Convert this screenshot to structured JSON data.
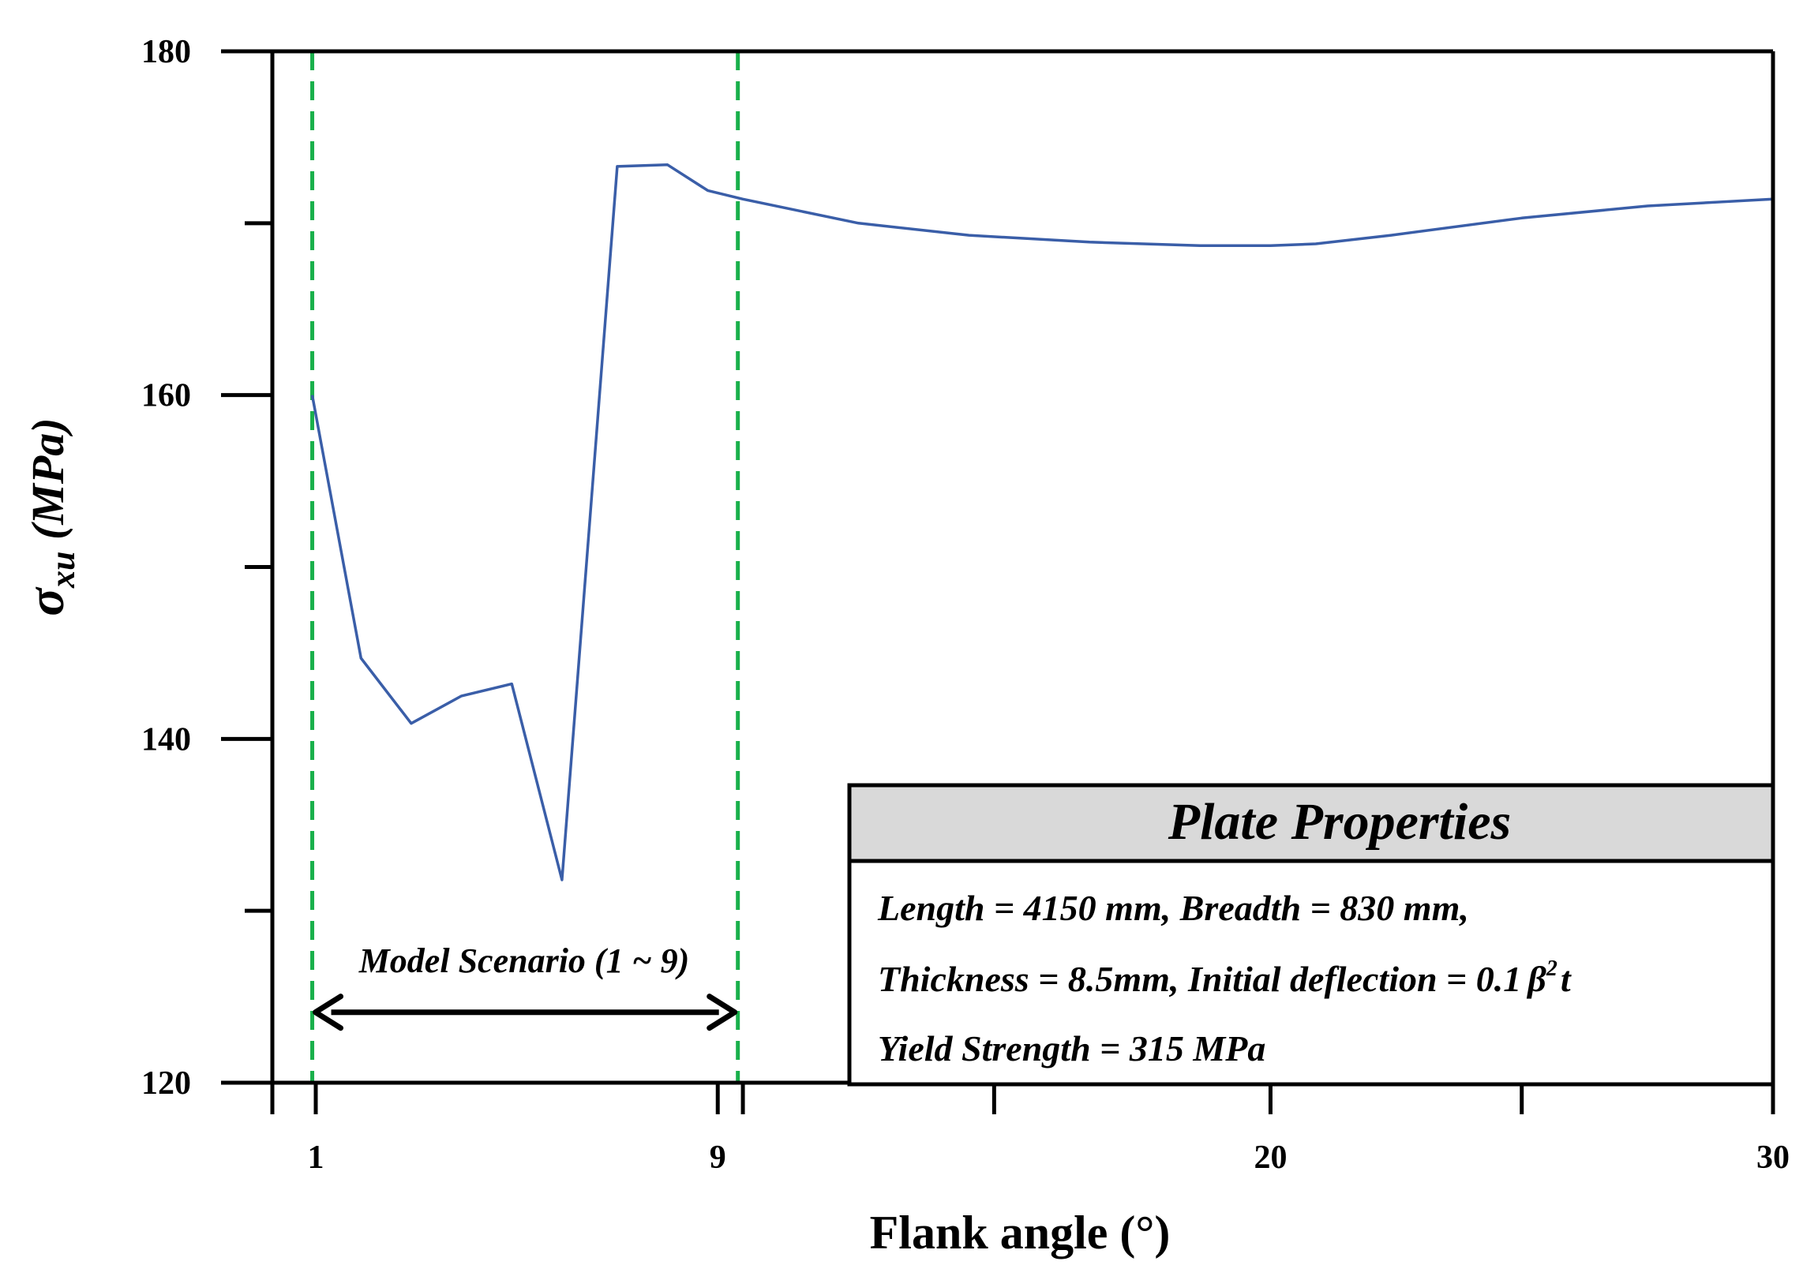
{
  "chart_data": {
    "type": "line",
    "title": "",
    "xlabel": "Flank angle (°)",
    "ylabel": {
      "symbol": "σ",
      "subscript": "xu",
      "unit": " (MPa)"
    },
    "xlim": [
      0,
      30
    ],
    "ylim": [
      120,
      180
    ],
    "xticks": [
      1,
      9,
      20,
      30
    ],
    "xticks_minor": [
      9.5,
      14.5,
      25
    ],
    "yticks": [
      120,
      140,
      160,
      180
    ],
    "yticks_minor": [
      130,
      150,
      170
    ],
    "grid": false,
    "series": [
      {
        "name": "sigma_xu",
        "color": "#3a5ea8",
        "x": [
          0.93,
          1.9,
          2.9,
          3.9,
          4.9,
          5.9,
          7.0,
          8.0,
          8.8,
          9.5,
          11.8,
          14.0,
          16.4,
          18.6,
          20.0,
          20.9,
          22.4,
          25.0,
          27.5,
          30
        ],
        "y": [
          160.0,
          144.7,
          140.9,
          142.5,
          143.2,
          131.8,
          173.3,
          173.4,
          171.9,
          171.4,
          170.0,
          169.3,
          168.9,
          168.7,
          168.7,
          168.8,
          169.3,
          170.3,
          171.0,
          171.4
        ]
      }
    ],
    "reference_lines": [
      {
        "x": 0.93,
        "style": "dashed",
        "color": "#19b04b"
      },
      {
        "x": 9.4,
        "style": "dashed",
        "color": "#19b04b"
      }
    ],
    "annotations": {
      "scenario_label": "Model Scenario (1 ~ 9)",
      "scenario_arrow_x": [
        0.93,
        9.4
      ],
      "scenario_arrow_y": 124.1
    }
  },
  "legend_box": {
    "title": "Plate Properties",
    "header_color": "#d9d9d9",
    "line1": "Length = 4150 mm,  Breadth = 830 mm,",
    "line2_main": "Thickness = 8.5mm, Initial deflection = 0.1",
    "line2_beta": "β",
    "line2_sup": "2",
    "line2_tail": "t",
    "line3": "Yield Strength = 315 MPa"
  }
}
